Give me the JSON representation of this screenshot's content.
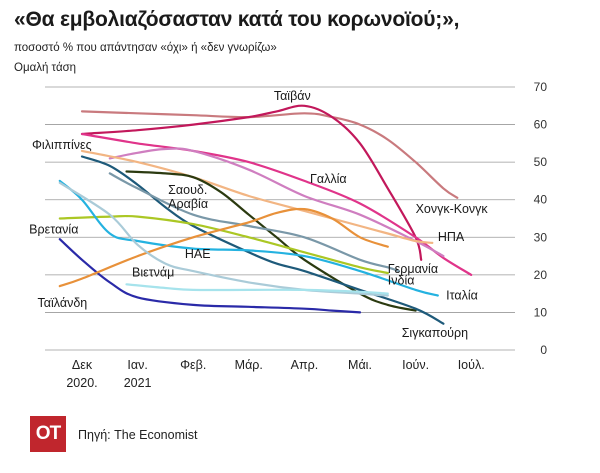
{
  "title": "«Θα εμβολιαζόσασταν κατά του κορωνοϊού;»,",
  "subtitle": "ποσοστό % που απάντησαν «όχι» ή «δεν γνωρίζω»",
  "ylabel": "Ομαλή τάση",
  "source": "Πηγή: The Economist",
  "logo_text": "ΟΤ",
  "chart_data": {
    "type": "line",
    "ylim": [
      0,
      70
    ],
    "yticks": [
      0,
      10,
      20,
      30,
      40,
      50,
      60,
      70
    ],
    "grid": true,
    "xlim": [
      0,
      7.6
    ],
    "xticks": [
      {
        "pos": 0,
        "line1": "Δεκ",
        "line2": "2020."
      },
      {
        "pos": 1,
        "line1": "Ιαν.",
        "line2": "2021"
      },
      {
        "pos": 2,
        "line1": "Φεβ.",
        "line2": ""
      },
      {
        "pos": 3,
        "line1": "Μάρ.",
        "line2": ""
      },
      {
        "pos": 4,
        "line1": "Απρ.",
        "line2": ""
      },
      {
        "pos": 5,
        "line1": "Μάι.",
        "line2": ""
      },
      {
        "pos": 6,
        "line1": "Ιούν.",
        "line2": ""
      },
      {
        "pos": 7,
        "line1": "Ιούλ.",
        "line2": ""
      }
    ],
    "series": [
      {
        "name": "Χονγκ-Κονγκ",
        "color": "#c97a7e",
        "points": [
          [
            0,
            63.5
          ],
          [
            1,
            63
          ],
          [
            2,
            62.5
          ],
          [
            3,
            62
          ],
          [
            4,
            63
          ],
          [
            4.5,
            62
          ],
          [
            5,
            60
          ],
          [
            5.5,
            56
          ],
          [
            6,
            50
          ],
          [
            6.5,
            43
          ],
          [
            6.75,
            40.5
          ]
        ],
        "label_anchor": [
          6.0,
          36.5
        ],
        "label_align": "start"
      },
      {
        "name": "Ταϊβάν",
        "color": "#c2185b",
        "points": [
          [
            0,
            57.5
          ],
          [
            1,
            58.5
          ],
          [
            2,
            60
          ],
          [
            3,
            62
          ],
          [
            3.5,
            63.5
          ],
          [
            4,
            65
          ],
          [
            4.5,
            62
          ],
          [
            5,
            55
          ],
          [
            5.5,
            43
          ],
          [
            6,
            30
          ],
          [
            6.1,
            24
          ]
        ],
        "label_anchor": [
          3.45,
          66.5
        ],
        "label_align": "start"
      },
      {
        "name": "Φιλιππίνες",
        "color": "#e0348a",
        "points": [
          [
            0,
            57.5
          ],
          [
            1,
            55
          ],
          [
            2,
            53
          ],
          [
            3,
            50
          ],
          [
            4,
            45
          ],
          [
            5,
            39
          ],
          [
            6,
            30
          ],
          [
            6.5,
            24.5
          ],
          [
            7,
            20
          ]
        ],
        "label_anchor": [
          -0.9,
          53.5
        ],
        "label_align": "start"
      },
      {
        "name": "Γαλλία",
        "color": "#cf7ec0",
        "points": [
          [
            0.5,
            51
          ],
          [
            1,
            52.5
          ],
          [
            1.5,
            53.5
          ],
          [
            2,
            53
          ],
          [
            3,
            48
          ],
          [
            4,
            41
          ],
          [
            5,
            36
          ],
          [
            6,
            29
          ],
          [
            6.5,
            25
          ]
        ],
        "label_anchor": [
          4.1,
          44.5
        ],
        "label_align": "start"
      },
      {
        "name": "ΗΠΑ",
        "color": "#f2b583",
        "points": [
          [
            0,
            53
          ],
          [
            1,
            50
          ],
          [
            2,
            46
          ],
          [
            3,
            41
          ],
          [
            4,
            37
          ],
          [
            5,
            33
          ],
          [
            5.5,
            31
          ],
          [
            6,
            29
          ],
          [
            6.3,
            28.5
          ]
        ],
        "label_anchor": [
          6.4,
          29
        ],
        "label_align": "start"
      },
      {
        "name": "Σαουδ. Αραβία",
        "color": "#2b3a10",
        "points": [
          [
            0.8,
            47.5
          ],
          [
            1.5,
            47
          ],
          [
            2,
            46
          ],
          [
            2.5,
            42
          ],
          [
            3,
            36
          ],
          [
            3.5,
            30
          ],
          [
            4,
            24
          ],
          [
            5,
            15
          ],
          [
            5.5,
            12
          ],
          [
            6,
            10.5
          ]
        ],
        "label_anchor": [
          1.55,
          41.5
        ],
        "label_align": "start"
      },
      {
        "name": "Σιγκαπούρη",
        "color": "#1e5a7a",
        "points": [
          [
            0,
            51.5
          ],
          [
            0.5,
            49
          ],
          [
            1,
            44
          ],
          [
            1.5,
            38
          ],
          [
            2,
            33
          ],
          [
            3,
            26
          ],
          [
            3.5,
            23
          ],
          [
            4,
            21
          ],
          [
            5,
            16
          ],
          [
            6,
            11
          ],
          [
            6.5,
            7
          ]
        ],
        "label_anchor": [
          5.75,
          3.5
        ],
        "label_align": "start"
      },
      {
        "name": "Γερμανία",
        "color": "#7a98a8",
        "points": [
          [
            0.5,
            47
          ],
          [
            1,
            43
          ],
          [
            2,
            36
          ],
          [
            3,
            33
          ],
          [
            4,
            30
          ],
          [
            5,
            24
          ],
          [
            5.5,
            22
          ],
          [
            5.7,
            21
          ]
        ],
        "label_anchor": [
          5.5,
          20.5
        ],
        "label_align": "start"
      },
      {
        "name": "Ινδία",
        "color": "#abc724",
        "points": [
          [
            -0.4,
            35
          ],
          [
            0.5,
            35.5
          ],
          [
            1,
            35.5
          ],
          [
            2,
            33.5
          ],
          [
            3,
            30
          ],
          [
            4,
            26
          ],
          [
            5,
            22
          ],
          [
            5.5,
            20.5
          ]
        ],
        "label_anchor": [
          5.5,
          17.5
        ],
        "label_align": "start"
      },
      {
        "name": "Ιταλία",
        "color": "#24b2e0",
        "points": [
          [
            -0.4,
            45
          ],
          [
            0,
            40
          ],
          [
            0.5,
            31
          ],
          [
            1,
            29
          ],
          [
            2,
            27
          ],
          [
            3,
            26.5
          ],
          [
            4,
            25
          ],
          [
            5,
            21
          ],
          [
            6,
            16
          ],
          [
            6.4,
            14.5
          ]
        ],
        "label_anchor": [
          6.55,
          13.5
        ],
        "label_align": "start"
      },
      {
        "name": "Βρετανία",
        "color": "#2a2aa8",
        "points": [
          [
            -0.4,
            29.5
          ],
          [
            0,
            24
          ],
          [
            0.5,
            18
          ],
          [
            1,
            14
          ],
          [
            2,
            12
          ],
          [
            3,
            11.5
          ],
          [
            4,
            11
          ],
          [
            4.5,
            10.5
          ],
          [
            5,
            10
          ]
        ],
        "label_anchor": [
          -0.95,
          31
        ],
        "label_align": "start"
      },
      {
        "name": "Ταϊλάνδη",
        "color": "#e8913a",
        "points": [
          [
            -0.4,
            17
          ],
          [
            0,
            19
          ],
          [
            1,
            25
          ],
          [
            2,
            30
          ],
          [
            3,
            34
          ],
          [
            3.5,
            36.5
          ],
          [
            4,
            37.5
          ],
          [
            4.5,
            35
          ],
          [
            5,
            30
          ],
          [
            5.5,
            27.5
          ]
        ],
        "label_anchor": [
          -0.8,
          11.5
        ],
        "label_align": "start"
      },
      {
        "name": "ΗΑΕ",
        "color": "#aacbd8",
        "points": [
          [
            -0.4,
            44.5
          ],
          [
            0.5,
            36
          ],
          [
            1,
            28
          ],
          [
            1.5,
            23
          ],
          [
            2,
            21
          ],
          [
            3,
            18
          ],
          [
            4,
            16
          ],
          [
            5,
            15
          ],
          [
            5.5,
            14.5
          ]
        ],
        "label_anchor": [
          1.85,
          24.5
        ],
        "label_align": "start"
      },
      {
        "name": "Βιετνάμ",
        "color": "#a6e3ec",
        "points": [
          [
            0.8,
            17.5
          ],
          [
            1.5,
            16.5
          ],
          [
            2,
            16
          ],
          [
            3,
            16
          ],
          [
            4,
            16
          ],
          [
            5,
            15.5
          ],
          [
            5.5,
            15
          ]
        ],
        "label_anchor": [
          0.9,
          19.5
        ],
        "label_align": "start"
      }
    ]
  }
}
